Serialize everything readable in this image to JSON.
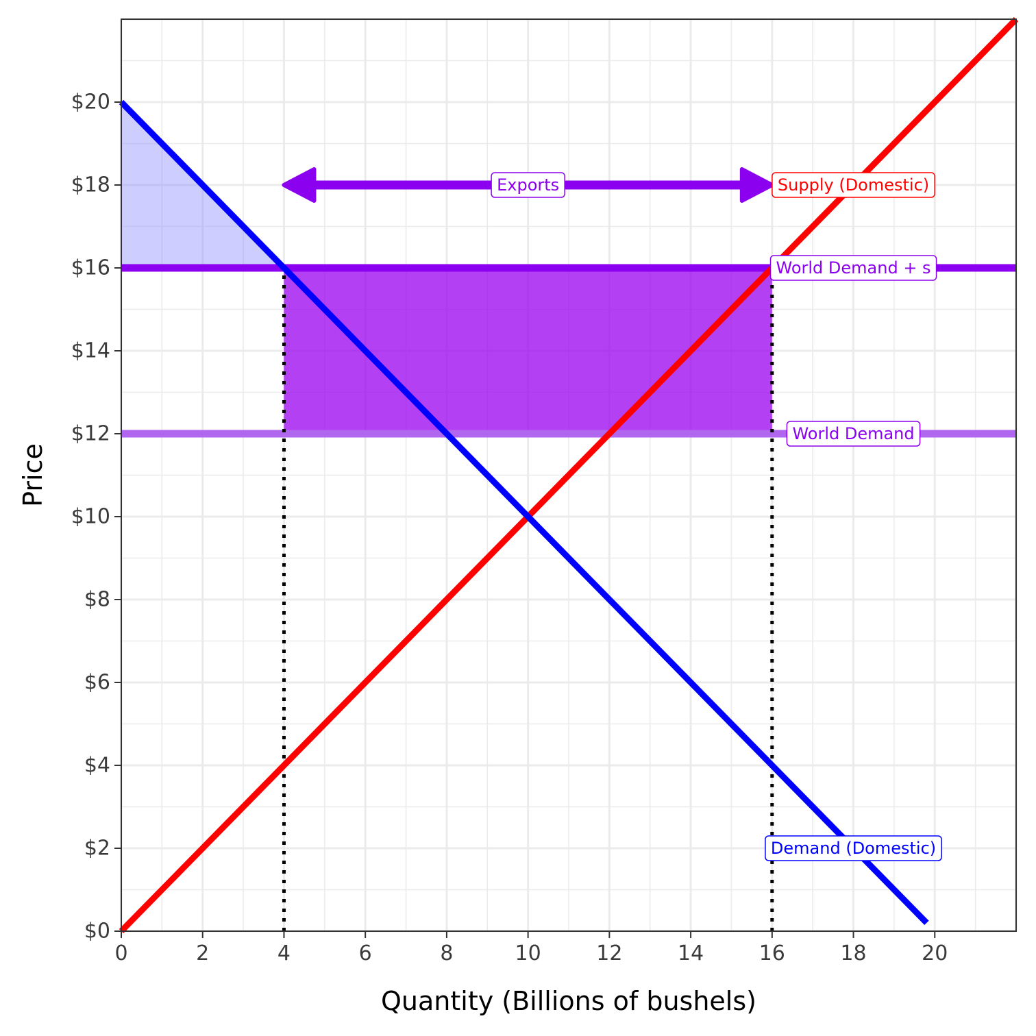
{
  "chart_data": {
    "type": "line",
    "title": "",
    "xlabel": "Quantity (Billions of bushels)",
    "ylabel": "Price",
    "xlim": [
      0,
      22
    ],
    "ylim": [
      0,
      22
    ],
    "x_ticks": [
      0,
      2,
      4,
      6,
      8,
      10,
      12,
      14,
      16,
      18,
      20
    ],
    "x_tick_labels": [
      "0",
      "2",
      "4",
      "6",
      "8",
      "10",
      "12",
      "14",
      "16",
      "18",
      "20"
    ],
    "y_ticks": [
      0,
      2,
      4,
      6,
      8,
      10,
      12,
      14,
      16,
      18,
      20
    ],
    "y_tick_labels": [
      "$0",
      "$2",
      "$4",
      "$6",
      "$8",
      "$10",
      "$12",
      "$14",
      "$16",
      "$18",
      "$20"
    ],
    "grid": true,
    "series": [
      {
        "name": "Supply (Domestic)",
        "color": "#ff0000",
        "x": [
          0,
          22
        ],
        "y": [
          0,
          22
        ]
      },
      {
        "name": "Demand (Domestic)",
        "color": "#0000ff",
        "x": [
          0,
          19.8
        ],
        "y": [
          20,
          0.2
        ]
      },
      {
        "name": "World Demand + s",
        "color": "#8b00ee",
        "x": [
          0,
          22
        ],
        "y": [
          16,
          16
        ]
      },
      {
        "name": "World Demand",
        "color": "#b066ee",
        "x": [
          0,
          22
        ],
        "y": [
          12,
          12
        ]
      }
    ],
    "shaded_regions": [
      {
        "name": "consumer-surplus",
        "color": "#8888ff",
        "polygon": [
          [
            0,
            20
          ],
          [
            4,
            16
          ],
          [
            0,
            16
          ]
        ]
      },
      {
        "name": "subsidy-cost",
        "color": "#9900ee",
        "polygon": [
          [
            4,
            12
          ],
          [
            16,
            12
          ],
          [
            16,
            16
          ],
          [
            4,
            16
          ]
        ]
      }
    ],
    "reference_lines": [
      {
        "x": 4,
        "y_range": [
          0,
          16
        ],
        "style": "dotted"
      },
      {
        "x": 16,
        "y_range": [
          0,
          16
        ],
        "style": "dotted"
      }
    ],
    "annotations": [
      {
        "text": "Exports",
        "type": "double-arrow",
        "x_range": [
          4,
          16
        ],
        "y": 18,
        "color": "#8b00ee"
      }
    ],
    "labels": [
      {
        "text": "Supply (Domestic)",
        "x": 18,
        "y": 18,
        "color": "#ff0000"
      },
      {
        "text": "World Demand + s",
        "x": 18,
        "y": 16,
        "color": "#8b00ee"
      },
      {
        "text": "World Demand",
        "x": 18,
        "y": 12,
        "color": "#8b00ee"
      },
      {
        "text": "Demand (Domestic)",
        "x": 18,
        "y": 2,
        "color": "#0000ff"
      }
    ]
  }
}
